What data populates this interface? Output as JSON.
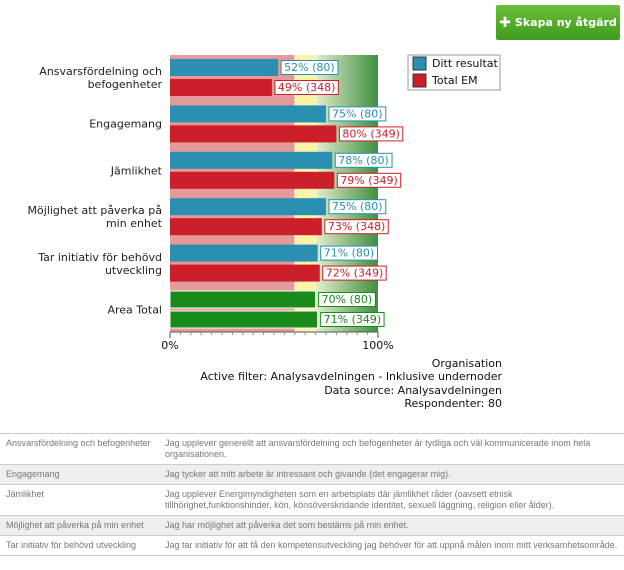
{
  "button": "Skapa ny åtgärd",
  "chart_data": {
    "type": "bar",
    "orientation": "horizontal",
    "categories": [
      "Ansvarsfördelning och befogenheter",
      "Engagemang",
      "Jämlikhet",
      "Möjlighet att påverka på min enhet",
      "Tar initiativ för behövd utveckling",
      "Area Total"
    ],
    "series": [
      {
        "name": "Ditt resultat",
        "color": "#2a8fb0",
        "colors": [
          "#2a8fb0",
          "#2a8fb0",
          "#2a8fb0",
          "#2a8fb0",
          "#2a8fb0",
          "#1a8a1a"
        ],
        "values": [
          52,
          75,
          78,
          75,
          71,
          70
        ],
        "value_labels": [
          "52% (80)",
          "75% (80)",
          "78% (80)",
          "75% (80)",
          "71% (80)",
          "70% (80)"
        ]
      },
      {
        "name": "Total EM",
        "color": "#cc1f2a",
        "colors": [
          "#cc1f2a",
          "#cc1f2a",
          "#cc1f2a",
          "#cc1f2a",
          "#cc1f2a",
          "#1a8a1a"
        ],
        "values": [
          49,
          80,
          79,
          73,
          72,
          71
        ],
        "value_labels": [
          "49% (348)",
          "80% (349)",
          "79% (349)",
          "73% (348)",
          "72% (349)",
          "71% (349)"
        ]
      }
    ],
    "xlim": [
      0,
      100
    ],
    "xticks": [
      {
        "value": 0,
        "label": "0%"
      },
      {
        "value": 100,
        "label": "100%"
      }
    ],
    "zones": [
      {
        "from": 0,
        "to": 60,
        "color": "#e39a98"
      },
      {
        "from": 60,
        "to": 70,
        "color": "#fdf3a8"
      },
      {
        "from": 70,
        "to": 100,
        "color": "#3f8f3f"
      }
    ],
    "legend": "top-right",
    "notes": [
      "Organisation",
      "Active filter: Analysavdelningen - Inklusive undernoder",
      "Data source: Analysavdelningen",
      "Respondenter: 80"
    ]
  },
  "table": {
    "rows": [
      [
        "Ansvarsfördelning och befogenheter",
        "Jag upplever generellt att ansvarsfördelning och befogenheter är tydliga och väl kommunicerade inom hela organisationen."
      ],
      [
        "Engagemang",
        "Jag tycker att mitt arbete är intressant och givande (det engagerar mig)."
      ],
      [
        "Jämlikhet",
        "Jag upplever Energimyndigheten som en arbetsplats där jämlikhet råder (oavsett etnisk tillhörighet,funktionshinder, kön, könsöverskridande identitet, sexuell läggning, religion eller ålder)."
      ],
      [
        "Möjlighet att påverka på min enhet",
        "Jag har möjlighet att påverka det som bestäms på min enhet."
      ],
      [
        "Tar initiativ för behövd utveckling",
        "Jag tar initiativ för att få den kompetensutveckling jag behöver för att uppnå målen inom mitt verksamhetsområde."
      ]
    ]
  }
}
